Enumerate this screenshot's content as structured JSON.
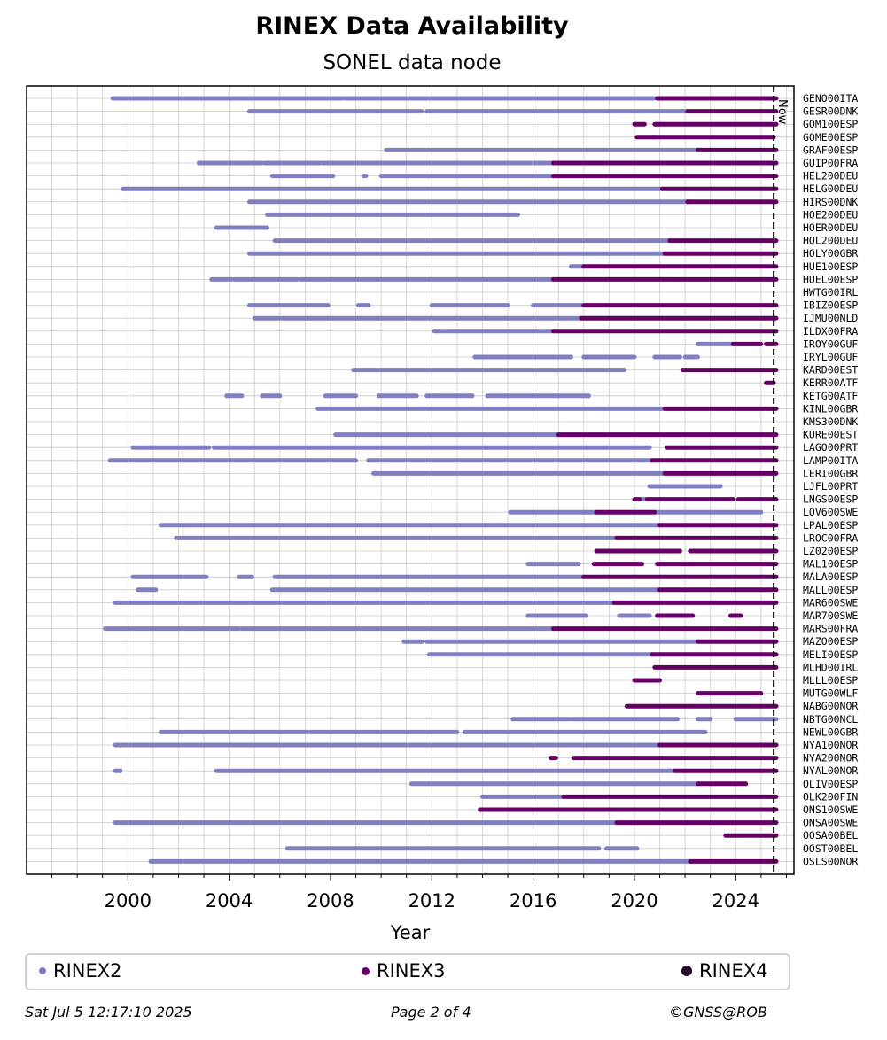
{
  "colors": {
    "rinex2": "#8080c0",
    "rinex3": "#660066",
    "rinex4": "#2a0a28"
  },
  "footer": {
    "left": "Sat Jul  5 12:17:10 2025",
    "center": "Page 2 of 4",
    "right": "©GNSS@ROB"
  },
  "chart_data": {
    "type": "timeline",
    "title": "RINEX Data Availability",
    "subtitle": "SONEL data node",
    "xlabel": "Year",
    "xlim": [
      1996,
      2026.3
    ],
    "xticks": [
      2000,
      2004,
      2008,
      2012,
      2016,
      2020,
      2024
    ],
    "now_label": "Now",
    "now_year": 2025.5,
    "legend": [
      "RINEX2",
      "RINEX3",
      "RINEX4"
    ],
    "stations": [
      {
        "name": "GENO00ITA",
        "r2": [
          [
            1999.4,
            2008.5
          ],
          [
            2008.6,
            2020.8
          ]
        ],
        "r3": [
          [
            2020.9,
            2025.6
          ]
        ]
      },
      {
        "name": "GESR00DNK",
        "r2": [
          [
            2004.8,
            2011.6
          ],
          [
            2011.8,
            2022.1
          ]
        ],
        "r3": [
          [
            2022.1,
            2025.6
          ]
        ]
      },
      {
        "name": "GOM100ESP",
        "r2": [],
        "r3": [
          [
            2020,
            2020.4
          ],
          [
            2020.8,
            2025.6
          ]
        ]
      },
      {
        "name": "GOME00ESP",
        "r2": [
          [
            2020.7,
            2020.8
          ]
        ],
        "r3": [
          [
            2020.1,
            2025.5
          ]
        ]
      },
      {
        "name": "GRAF00ESP",
        "r2": [
          [
            2010.2,
            2022.5
          ]
        ],
        "r3": [
          [
            2022.5,
            2025.6
          ]
        ]
      },
      {
        "name": "GUIP00FRA",
        "r2": [
          [
            2002.8,
            2005.3
          ],
          [
            2005.4,
            2007.6
          ],
          [
            2007.7,
            2016.8
          ]
        ],
        "r3": [
          [
            2016.8,
            2025.6
          ]
        ]
      },
      {
        "name": "HEL200DEU",
        "r2": [
          [
            2005.7,
            2008.1
          ],
          [
            2009.3,
            2009.4
          ],
          [
            2010,
            2016.8
          ]
        ],
        "r3": [
          [
            2016.8,
            2025.6
          ]
        ]
      },
      {
        "name": "HELG00DEU",
        "r2": [
          [
            1999.8,
            2021.1
          ]
        ],
        "r3": [
          [
            2021.1,
            2025.6
          ]
        ]
      },
      {
        "name": "HIRS00DNK",
        "r2": [
          [
            2004.8,
            2022.1
          ]
        ],
        "r3": [
          [
            2022.1,
            2025.6
          ]
        ]
      },
      {
        "name": "HOE200DEU",
        "r2": [
          [
            2005.5,
            2015.4
          ]
        ],
        "r3": []
      },
      {
        "name": "HOER00DEU",
        "r2": [
          [
            2003.5,
            2005.5
          ]
        ],
        "r3": []
      },
      {
        "name": "HOL200DEU",
        "r2": [
          [
            2005.8,
            2021.4
          ]
        ],
        "r3": [
          [
            2021.4,
            2025.6
          ]
        ]
      },
      {
        "name": "HOLY00GBR",
        "r2": [
          [
            2004.8,
            2021.2
          ]
        ],
        "r3": [
          [
            2021.2,
            2025.6
          ]
        ]
      },
      {
        "name": "HUE100ESP",
        "r2": [
          [
            2017.5,
            2018
          ]
        ],
        "r3": [
          [
            2018,
            2025.6
          ]
        ]
      },
      {
        "name": "HUEL00ESP",
        "r2": [
          [
            2003.3,
            2004.1
          ],
          [
            2004.2,
            2006.7
          ],
          [
            2006.8,
            2016.8
          ]
        ],
        "r3": [
          [
            2016.8,
            2025.6
          ]
        ]
      },
      {
        "name": "HWTG00IRL",
        "r2": [],
        "r3": []
      },
      {
        "name": "IBIZ00ESP",
        "r2": [
          [
            2004.8,
            2007.9
          ],
          [
            2009.1,
            2009.5
          ],
          [
            2012,
            2015
          ],
          [
            2016,
            2017.9
          ]
        ],
        "r3": [
          [
            2018,
            2025.6
          ]
        ]
      },
      {
        "name": "IJMU00NLD",
        "r2": [
          [
            2005,
            2006
          ],
          [
            2006.1,
            2017.9
          ]
        ],
        "r3": [
          [
            2017.9,
            2025.6
          ]
        ]
      },
      {
        "name": "ILDX00FRA",
        "r2": [
          [
            2012.1,
            2016.8
          ]
        ],
        "r3": [
          [
            2016.8,
            2025.6
          ]
        ]
      },
      {
        "name": "IROY00GUF",
        "r2": [
          [
            2022.5,
            2023.9
          ]
        ],
        "r3": [
          [
            2023.9,
            2025
          ],
          [
            2025.2,
            2025.6
          ]
        ]
      },
      {
        "name": "IRYL00GUF",
        "r2": [
          [
            2013.7,
            2017.5
          ],
          [
            2018,
            2020
          ],
          [
            2020.8,
            2021.8
          ],
          [
            2022,
            2022.5
          ]
        ],
        "r3": []
      },
      {
        "name": "KARD00EST",
        "r2": [
          [
            2008.9,
            2019.6
          ]
        ],
        "r3": [
          [
            2021.9,
            2025.6
          ]
        ]
      },
      {
        "name": "KERR00ATF",
        "r2": [],
        "r3": [
          [
            2025.2,
            2025.5
          ]
        ]
      },
      {
        "name": "KETG00ATF",
        "r2": [
          [
            2003.9,
            2004.5
          ],
          [
            2005.3,
            2006
          ],
          [
            2007.8,
            2009
          ],
          [
            2009.9,
            2011.4
          ],
          [
            2011.8,
            2013.6
          ],
          [
            2014.2,
            2018.2
          ]
        ],
        "r3": []
      },
      {
        "name": "KINL00GBR",
        "r2": [
          [
            2007.5,
            2021.2
          ]
        ],
        "r3": [
          [
            2021.2,
            2025.6
          ]
        ]
      },
      {
        "name": "KMS300DNK",
        "r2": [],
        "r3": []
      },
      {
        "name": "KURE00EST",
        "r2": [
          [
            2008.2,
            2017
          ]
        ],
        "r3": [
          [
            2017,
            2025.6
          ]
        ]
      },
      {
        "name": "LAGO00PRT",
        "r2": [
          [
            2000.2,
            2003.2
          ],
          [
            2003.4,
            2020.6
          ]
        ],
        "r3": [
          [
            2021.3,
            2025.6
          ]
        ]
      },
      {
        "name": "LAMP00ITA",
        "r2": [
          [
            1999.3,
            2009
          ],
          [
            2009.5,
            2010
          ],
          [
            2010.1,
            2020.7
          ]
        ],
        "r3": [
          [
            2020.7,
            2025.6
          ]
        ]
      },
      {
        "name": "LERI00GBR",
        "r2": [
          [
            2009.7,
            2021.2
          ]
        ],
        "r3": [
          [
            2021.2,
            2025.6
          ]
        ]
      },
      {
        "name": "LJFL00PRT",
        "r2": [
          [
            2020.6,
            2023.4
          ]
        ],
        "r3": []
      },
      {
        "name": "LNGS00ESP",
        "r2": [
          [
            2020.2,
            2020.5
          ]
        ],
        "r3": [
          [
            2020,
            2020.2
          ],
          [
            2020.5,
            2023.9
          ],
          [
            2024.1,
            2025.6
          ]
        ]
      },
      {
        "name": "LOV600SWE",
        "r2": [
          [
            2015.1,
            2018.5
          ],
          [
            2020.8,
            2025
          ]
        ],
        "r3": [
          [
            2018.5,
            2020.8
          ]
        ]
      },
      {
        "name": "LPAL00ESP",
        "r2": [
          [
            2001.3,
            2021
          ]
        ],
        "r3": [
          [
            2021,
            2025.6
          ]
        ]
      },
      {
        "name": "LROC00FRA",
        "r2": [
          [
            2001.9,
            2019.3
          ]
        ],
        "r3": [
          [
            2019.3,
            2025.6
          ]
        ]
      },
      {
        "name": "LZ0200ESP",
        "r2": [],
        "r3": [
          [
            2018.5,
            2021.8
          ],
          [
            2022.2,
            2025.6
          ]
        ]
      },
      {
        "name": "MAL100ESP",
        "r2": [
          [
            2015.8,
            2017.8
          ]
        ],
        "r3": [
          [
            2018.4,
            2020.3
          ],
          [
            2020.9,
            2025.6
          ]
        ]
      },
      {
        "name": "MALA00ESP",
        "r2": [
          [
            2000.2,
            2003.1
          ],
          [
            2004.4,
            2004.9
          ],
          [
            2005.8,
            2018
          ]
        ],
        "r3": [
          [
            2018,
            2025.6
          ]
        ]
      },
      {
        "name": "MALL00ESP",
        "r2": [
          [
            2000.4,
            2001.1
          ],
          [
            2005.7,
            2021
          ]
        ],
        "r3": [
          [
            2021,
            2025.6
          ]
        ]
      },
      {
        "name": "MAR600SWE",
        "r2": [
          [
            1999.5,
            2019.2
          ]
        ],
        "r3": [
          [
            2019.2,
            2025.6
          ]
        ]
      },
      {
        "name": "MAR700SWE",
        "r2": [
          [
            2015.8,
            2018.1
          ],
          [
            2019.4,
            2020.6
          ]
        ],
        "r3": [
          [
            2020.9,
            2022.3
          ],
          [
            2023.8,
            2024.2
          ]
        ]
      },
      {
        "name": "MARS00FRA",
        "r2": [
          [
            1999.1,
            2004.4
          ],
          [
            2004.5,
            2016.8
          ]
        ],
        "r3": [
          [
            2016.8,
            2025.6
          ]
        ]
      },
      {
        "name": "MAZO00ESP",
        "r2": [
          [
            2010.9,
            2011.6
          ],
          [
            2011.8,
            2022.5
          ]
        ],
        "r3": [
          [
            2022.5,
            2025.6
          ]
        ]
      },
      {
        "name": "MELI00ESP",
        "r2": [
          [
            2011.9,
            2020.7
          ]
        ],
        "r3": [
          [
            2020.7,
            2025.6
          ]
        ]
      },
      {
        "name": "MLHD00IRL",
        "r2": [],
        "r3": [
          [
            2020.8,
            2025.6
          ]
        ]
      },
      {
        "name": "MLLL00ESP",
        "r2": [
          [
            2020.2,
            2020.5
          ]
        ],
        "r3": [
          [
            2020,
            2021
          ]
        ]
      },
      {
        "name": "MUTG00WLF",
        "r2": [],
        "r3": [
          [
            2022.5,
            2025
          ]
        ]
      },
      {
        "name": "NABG00NOR",
        "r2": [],
        "r3": [
          [
            2019.7,
            2025.6
          ]
        ]
      },
      {
        "name": "NBTG00NCL",
        "r2": [
          [
            2015.2,
            2017.4
          ],
          [
            2017.5,
            2021.7
          ],
          [
            2022.5,
            2023
          ],
          [
            2024,
            2025.6
          ]
        ],
        "r3": []
      },
      {
        "name": "NEWL00GBR",
        "r2": [
          [
            2001.3,
            2007.1
          ],
          [
            2007.2,
            2013
          ],
          [
            2013.3,
            2022.8
          ]
        ],
        "r3": []
      },
      {
        "name": "NYA100NOR",
        "r2": [
          [
            1999.5,
            2021
          ]
        ],
        "r3": [
          [
            2021,
            2025.6
          ]
        ]
      },
      {
        "name": "NYA200NOR",
        "r2": [],
        "r3": [
          [
            2016.7,
            2016.9
          ],
          [
            2017.6,
            2025.6
          ]
        ]
      },
      {
        "name": "NYAL00NOR",
        "r2": [
          [
            1999.5,
            1999.7
          ],
          [
            2003.5,
            2021.6
          ]
        ],
        "r3": [
          [
            2021.6,
            2025.6
          ]
        ]
      },
      {
        "name": "OLIV00ESP",
        "r2": [
          [
            2011.2,
            2022.5
          ]
        ],
        "r3": [
          [
            2022.5,
            2024.4
          ]
        ]
      },
      {
        "name": "OLK200FIN",
        "r2": [
          [
            2014,
            2017.2
          ]
        ],
        "r3": [
          [
            2017.2,
            2025.6
          ]
        ]
      },
      {
        "name": "ONS100SWE",
        "r2": [
          [
            2016,
            2017.7
          ],
          [
            2019.3,
            2021
          ]
        ],
        "r3": [
          [
            2013.9,
            2025.6
          ]
        ]
      },
      {
        "name": "ONSA00SWE",
        "r2": [
          [
            1999.5,
            2019.3
          ]
        ],
        "r3": [
          [
            2019.3,
            2025.6
          ]
        ]
      },
      {
        "name": "OOSA00BEL",
        "r2": [],
        "r3": [
          [
            2023.6,
            2025.6
          ]
        ]
      },
      {
        "name": "OOST00BEL",
        "r2": [
          [
            2006.3,
            2018.6
          ],
          [
            2018.9,
            2020.1
          ]
        ],
        "r3": []
      },
      {
        "name": "OSLS00NOR",
        "r2": [
          [
            2000.9,
            2022.2
          ]
        ],
        "r3": [
          [
            2022.2,
            2025.6
          ]
        ]
      }
    ]
  }
}
